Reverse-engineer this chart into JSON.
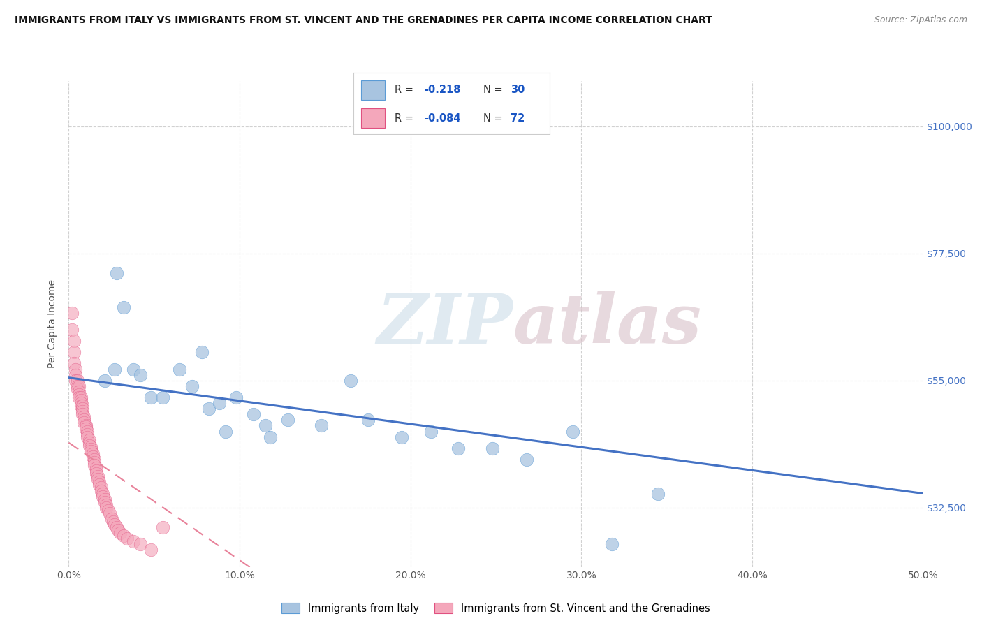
{
  "title": "IMMIGRANTS FROM ITALY VS IMMIGRANTS FROM ST. VINCENT AND THE GRENADINES PER CAPITA INCOME CORRELATION CHART",
  "source": "Source: ZipAtlas.com",
  "ylabel": "Per Capita Income",
  "ytick_labels": [
    "$100,000",
    "$77,500",
    "$55,000",
    "$32,500"
  ],
  "ytick_values": [
    100000,
    77500,
    55000,
    32500
  ],
  "xlim": [
    0.0,
    0.5
  ],
  "ylim": [
    22000,
    108000
  ],
  "italy_color": "#a8c4e0",
  "italy_edge_color": "#5b9bd5",
  "svg_color": "#f4a7bb",
  "svg_edge_color": "#e05080",
  "italy_line_color": "#4472c4",
  "svg_line_color": "#e8829a",
  "italy_x": [
    0.021,
    0.027,
    0.028,
    0.032,
    0.038,
    0.042,
    0.048,
    0.055,
    0.065,
    0.072,
    0.078,
    0.082,
    0.088,
    0.092,
    0.098,
    0.108,
    0.115,
    0.118,
    0.128,
    0.148,
    0.165,
    0.175,
    0.195,
    0.212,
    0.228,
    0.248,
    0.268,
    0.295,
    0.318,
    0.345
  ],
  "italy_y": [
    55000,
    57000,
    74000,
    68000,
    57000,
    56000,
    52000,
    52000,
    57000,
    54000,
    60000,
    50000,
    51000,
    46000,
    52000,
    49000,
    47000,
    45000,
    48000,
    47000,
    55000,
    48000,
    45000,
    46000,
    43000,
    43000,
    41000,
    46000,
    26000,
    35000
  ],
  "svg_x": [
    0.002,
    0.002,
    0.003,
    0.003,
    0.003,
    0.004,
    0.004,
    0.004,
    0.005,
    0.005,
    0.005,
    0.006,
    0.006,
    0.006,
    0.006,
    0.007,
    0.007,
    0.007,
    0.007,
    0.008,
    0.008,
    0.008,
    0.008,
    0.009,
    0.009,
    0.009,
    0.01,
    0.01,
    0.01,
    0.011,
    0.011,
    0.011,
    0.012,
    0.012,
    0.012,
    0.013,
    0.013,
    0.013,
    0.014,
    0.014,
    0.015,
    0.015,
    0.015,
    0.016,
    0.016,
    0.016,
    0.017,
    0.017,
    0.018,
    0.018,
    0.019,
    0.019,
    0.02,
    0.02,
    0.021,
    0.021,
    0.022,
    0.022,
    0.023,
    0.024,
    0.025,
    0.026,
    0.027,
    0.028,
    0.029,
    0.03,
    0.032,
    0.034,
    0.038,
    0.042,
    0.048,
    0.055
  ],
  "svg_y": [
    67000,
    64000,
    62000,
    60000,
    58000,
    57000,
    56000,
    55000,
    55000,
    54000,
    53500,
    54000,
    53000,
    52500,
    52000,
    52000,
    51500,
    51000,
    50500,
    50500,
    50000,
    49500,
    49000,
    48500,
    48000,
    47500,
    47000,
    46800,
    46500,
    46000,
    45500,
    45000,
    44500,
    44000,
    43500,
    43200,
    42800,
    42500,
    42000,
    41500,
    41000,
    40500,
    40000,
    39500,
    39000,
    38500,
    38000,
    37500,
    37000,
    36500,
    36000,
    35500,
    35000,
    34500,
    34000,
    33500,
    33000,
    32500,
    32000,
    31500,
    30500,
    30000,
    29500,
    29000,
    28500,
    28000,
    27500,
    27000,
    26500,
    26000,
    25000,
    29000
  ]
}
